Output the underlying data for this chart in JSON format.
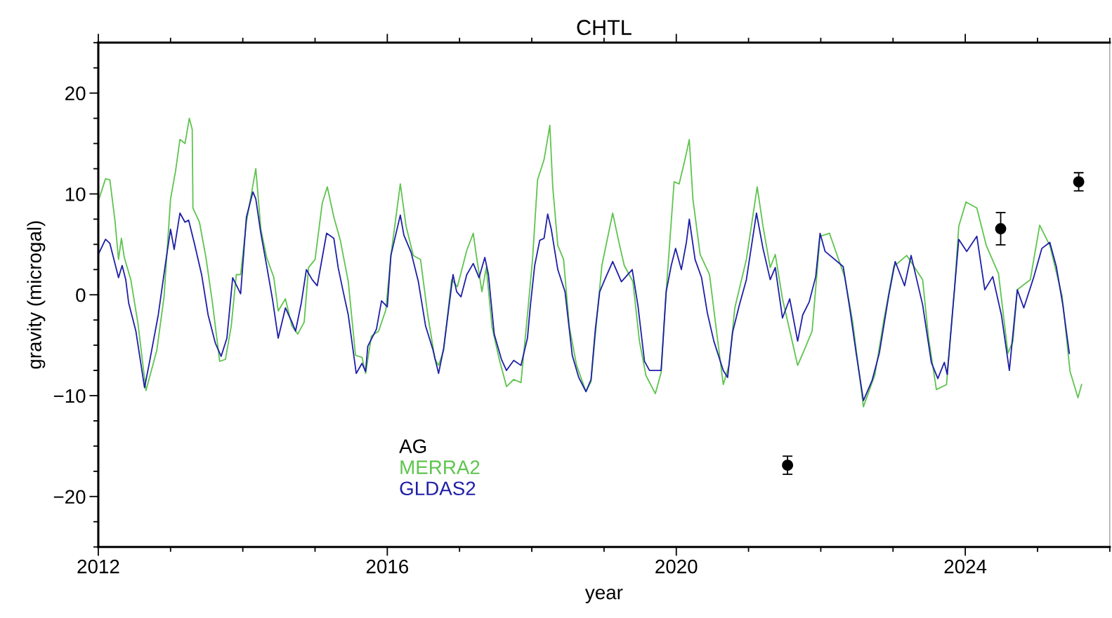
{
  "chart_data": {
    "type": "line",
    "title": "CHTL",
    "xlabel": "year",
    "ylabel": "gravity (microgal)",
    "xlim": [
      2012,
      2026
    ],
    "ylim": [
      -25,
      25
    ],
    "xticks": [
      2012,
      {
        "value": 2013,
        "label": null
      },
      {
        "value": 2014,
        "label": null
      },
      {
        "value": 2015,
        "label": null
      },
      2016,
      {
        "value": 2017,
        "label": null
      },
      {
        "value": 2018,
        "label": null
      },
      {
        "value": 2019,
        "label": null
      },
      2020,
      {
        "value": 2021,
        "label": null
      },
      {
        "value": 2022,
        "label": null
      },
      {
        "value": 2023,
        "label": null
      },
      2024,
      {
        "value": 2025,
        "label": null
      },
      {
        "value": 2026,
        "label": null
      }
    ],
    "yticks": [
      {
        "value": -25,
        "label": null
      },
      {
        "value": -22.5,
        "label": null
      },
      {
        "value": -20,
        "label": "−20"
      },
      {
        "value": -17.5,
        "label": null
      },
      {
        "value": -15,
        "label": null
      },
      {
        "value": -12.5,
        "label": null
      },
      {
        "value": -10,
        "label": "−10"
      },
      {
        "value": -7.5,
        "label": null
      },
      {
        "value": -5,
        "label": null
      },
      {
        "value": -2.5,
        "label": null
      },
      0,
      {
        "value": 2.5,
        "label": null
      },
      {
        "value": 5,
        "label": null
      },
      {
        "value": 7.5,
        "label": null
      },
      10,
      {
        "value": 12.5,
        "label": null
      },
      {
        "value": 15,
        "label": null
      },
      {
        "value": 17.5,
        "label": null
      },
      20,
      {
        "value": 22.5,
        "label": null
      },
      {
        "value": 25,
        "label": null
      }
    ],
    "grid": false,
    "legend": "bottom left",
    "series": [
      {
        "name": "AG",
        "type": "scatter",
        "color": "#000000",
        "marker": "circle",
        "x": [
          2021.54,
          2024.49,
          2025.57
        ],
        "values": [
          -16.9,
          6.55,
          11.2
        ],
        "errors": [
          0.9,
          1.6,
          0.9
        ]
      },
      {
        "name": "MERRA2",
        "type": "line",
        "color": "#5fc44f",
        "x": [
          2012.0,
          2012.1,
          2012.16,
          2012.23,
          2012.28,
          2012.32,
          2012.36,
          2012.45,
          2012.55,
          2012.66,
          2012.81,
          2012.91,
          2013.0,
          2013.07,
          2013.13,
          2013.2,
          2013.26,
          2013.3,
          2013.31,
          2013.4,
          2013.49,
          2013.58,
          2013.68,
          2013.76,
          2013.84,
          2013.91,
          2013.97,
          2014.05,
          2014.18,
          2014.25,
          2014.33,
          2014.43,
          2014.49,
          2014.59,
          2014.68,
          2014.76,
          2014.85,
          2014.91,
          2015.0,
          2015.1,
          2015.17,
          2015.26,
          2015.35,
          2015.46,
          2015.56,
          2015.65,
          2015.7,
          2015.78,
          2015.88,
          2015.98,
          2016.05,
          2016.18,
          2016.26,
          2016.36,
          2016.46,
          2016.56,
          2016.66,
          2016.71,
          2016.78,
          2016.89,
          2016.97,
          2017.1,
          2017.19,
          2017.23,
          2017.31,
          2017.37,
          2017.45,
          2017.55,
          2017.65,
          2017.75,
          2017.85,
          2017.94,
          2018.01,
          2018.08,
          2018.17,
          2018.25,
          2018.29,
          2018.36,
          2018.44,
          2018.52,
          2018.62,
          2018.75,
          2018.82,
          2018.88,
          2018.97,
          2019.12,
          2019.2,
          2019.28,
          2019.4,
          2019.49,
          2019.58,
          2019.71,
          2019.79,
          2019.86,
          2019.97,
          2020.04,
          2020.12,
          2020.18,
          2020.23,
          2020.33,
          2020.46,
          2020.55,
          2020.65,
          2020.73,
          2020.81,
          2020.97,
          2021.12,
          2021.2,
          2021.3,
          2021.37,
          2021.47,
          2021.68,
          2021.77,
          2021.88,
          2021.99,
          2022.12,
          2022.33,
          2022.44,
          2022.59,
          2022.75,
          2022.87,
          2023.01,
          2023.19,
          2023.41,
          2023.49,
          2023.6,
          2023.74,
          2023.85,
          2023.91,
          2024.01,
          2024.16,
          2024.29,
          2024.46,
          2024.59,
          2024.66,
          2024.72,
          2024.9,
          2025.03,
          2025.17,
          2025.34,
          2025.45,
          2025.56,
          2025.61
        ],
        "values": [
          9.3,
          11.5,
          11.4,
          7.4,
          3.5,
          5.6,
          3.7,
          1.5,
          -2.9,
          -9.5,
          -5.5,
          -0.2,
          9.5,
          12.3,
          15.4,
          15.0,
          17.5,
          16.4,
          8.6,
          7.2,
          3.7,
          -0.8,
          -6.6,
          -6.4,
          -3.1,
          2.0,
          2.0,
          7.2,
          12.5,
          6.5,
          3.7,
          1.7,
          -1.6,
          -0.4,
          -3.1,
          -3.9,
          -2.7,
          2.7,
          3.5,
          9.1,
          10.7,
          7.7,
          5.4,
          1.3,
          -6.0,
          -6.2,
          -7.8,
          -4.1,
          -3.6,
          -1.5,
          3.9,
          11.0,
          6.8,
          3.9,
          3.5,
          -2.0,
          -6.4,
          -7.0,
          -5.5,
          1.5,
          0.8,
          4.4,
          6.1,
          4.0,
          0.3,
          2.7,
          -3.2,
          -6.4,
          -9.1,
          -8.4,
          -8.7,
          -2.0,
          3.5,
          11.4,
          13.4,
          16.8,
          10.7,
          4.9,
          3.5,
          -3.2,
          -7.0,
          -9.6,
          -8.6,
          -3.9,
          2.9,
          8.1,
          5.4,
          2.9,
          1.3,
          -4.6,
          -8.0,
          -9.8,
          -7.7,
          0.3,
          11.2,
          11.0,
          13.4,
          15.4,
          9.5,
          4.0,
          2.0,
          -3.2,
          -8.9,
          -7.0,
          -1.3,
          3.5,
          10.7,
          6.8,
          2.7,
          4.0,
          -0.4,
          -7.0,
          -5.5,
          -3.6,
          5.8,
          6.1,
          1.8,
          -2.6,
          -11.1,
          -7.9,
          -2.6,
          2.8,
          3.9,
          1.5,
          -4.2,
          -9.4,
          -8.9,
          0.5,
          6.8,
          9.2,
          8.6,
          4.9,
          2.1,
          -5.8,
          -4.6,
          0.5,
          1.5,
          6.9,
          4.9,
          -0.1,
          -7.6,
          -10.2,
          -8.9
        ]
      },
      {
        "name": "GLDAS2",
        "type": "line",
        "color": "#1f1fa8",
        "x": [
          2012.0,
          2012.1,
          2012.16,
          2012.28,
          2012.33,
          2012.38,
          2012.42,
          2012.52,
          2012.64,
          2012.7,
          2012.83,
          2012.93,
          2013.0,
          2013.05,
          2013.13,
          2013.2,
          2013.25,
          2013.33,
          2013.43,
          2013.52,
          2013.62,
          2013.7,
          2013.78,
          2013.86,
          2013.97,
          2014.05,
          2014.14,
          2014.18,
          2014.25,
          2014.33,
          2014.41,
          2014.49,
          2014.59,
          2014.68,
          2014.73,
          2014.81,
          2014.88,
          2014.96,
          2015.03,
          2015.16,
          2015.26,
          2015.32,
          2015.39,
          2015.46,
          2015.57,
          2015.65,
          2015.7,
          2015.73,
          2015.85,
          2015.92,
          2016.0,
          2016.05,
          2016.18,
          2016.23,
          2016.33,
          2016.43,
          2016.53,
          2016.63,
          2016.71,
          2016.78,
          2016.91,
          2016.96,
          2017.02,
          2017.1,
          2017.19,
          2017.27,
          2017.35,
          2017.4,
          2017.48,
          2017.58,
          2017.65,
          2017.75,
          2017.85,
          2017.94,
          2017.98,
          2018.04,
          2018.11,
          2018.17,
          2018.22,
          2018.27,
          2018.36,
          2018.46,
          2018.56,
          2018.65,
          2018.75,
          2018.82,
          2018.88,
          2018.94,
          2019.01,
          2019.12,
          2019.24,
          2019.39,
          2019.47,
          2019.56,
          2019.63,
          2019.79,
          2019.86,
          2019.93,
          2019.99,
          2020.07,
          2020.14,
          2020.18,
          2020.26,
          2020.35,
          2020.43,
          2020.52,
          2020.65,
          2020.71,
          2020.78,
          2020.87,
          2020.97,
          2021.11,
          2021.2,
          2021.3,
          2021.37,
          2021.47,
          2021.57,
          2021.68,
          2021.75,
          2021.84,
          2021.93,
          2021.99,
          2022.06,
          2022.31,
          2022.4,
          2022.49,
          2022.59,
          2022.71,
          2022.81,
          2022.94,
          2023.03,
          2023.16,
          2023.25,
          2023.41,
          2023.53,
          2023.62,
          2023.71,
          2023.75,
          2023.85,
          2023.91,
          2024.02,
          2024.16,
          2024.27,
          2024.38,
          2024.5,
          2024.61,
          2024.72,
          2024.81,
          2024.95,
          2025.06,
          2025.17,
          2025.26,
          2025.35,
          2025.44
        ],
        "values": [
          4.0,
          5.5,
          5.1,
          1.7,
          2.9,
          1.5,
          -0.8,
          -3.6,
          -9.2,
          -7.0,
          -2.0,
          3.1,
          6.5,
          4.5,
          8.1,
          7.2,
          7.4,
          5.1,
          2.0,
          -2.0,
          -4.8,
          -6.1,
          -4.3,
          1.7,
          0.1,
          7.7,
          10.2,
          9.5,
          6.1,
          2.9,
          -0.4,
          -4.3,
          -1.3,
          -2.7,
          -3.6,
          -0.8,
          2.5,
          1.5,
          0.9,
          6.1,
          5.6,
          2.7,
          0.3,
          -2.0,
          -7.8,
          -6.8,
          -7.6,
          -5.1,
          -3.4,
          -0.6,
          -1.2,
          3.9,
          7.9,
          5.9,
          4.2,
          1.3,
          -3.1,
          -5.4,
          -7.8,
          -5.3,
          2.0,
          0.3,
          -0.2,
          2.0,
          3.1,
          1.7,
          3.7,
          2.0,
          -3.9,
          -6.4,
          -7.5,
          -6.5,
          -7.0,
          -4.3,
          -1.1,
          2.9,
          5.4,
          5.6,
          8.0,
          6.5,
          2.5,
          0.3,
          -6.0,
          -8.2,
          -9.6,
          -8.4,
          -3.4,
          0.3,
          1.5,
          3.3,
          1.3,
          2.5,
          -1.1,
          -6.6,
          -7.5,
          -7.5,
          0.3,
          2.9,
          4.6,
          2.5,
          5.2,
          7.5,
          3.5,
          1.7,
          -1.8,
          -4.6,
          -7.5,
          -8.2,
          -3.7,
          -1.1,
          1.5,
          8.1,
          4.6,
          1.5,
          2.7,
          -2.3,
          -0.4,
          -4.6,
          -2.0,
          -0.7,
          1.8,
          6.1,
          4.3,
          2.8,
          -1.3,
          -5.8,
          -10.5,
          -8.5,
          -5.8,
          -0.1,
          3.3,
          0.9,
          3.9,
          -1.0,
          -6.7,
          -8.3,
          -6.7,
          -7.9,
          0.5,
          5.5,
          4.3,
          5.8,
          0.5,
          1.8,
          -2.0,
          -7.5,
          0.5,
          -1.3,
          1.8,
          4.6,
          5.2,
          2.8,
          -1.0,
          -5.8
        ]
      }
    ]
  }
}
